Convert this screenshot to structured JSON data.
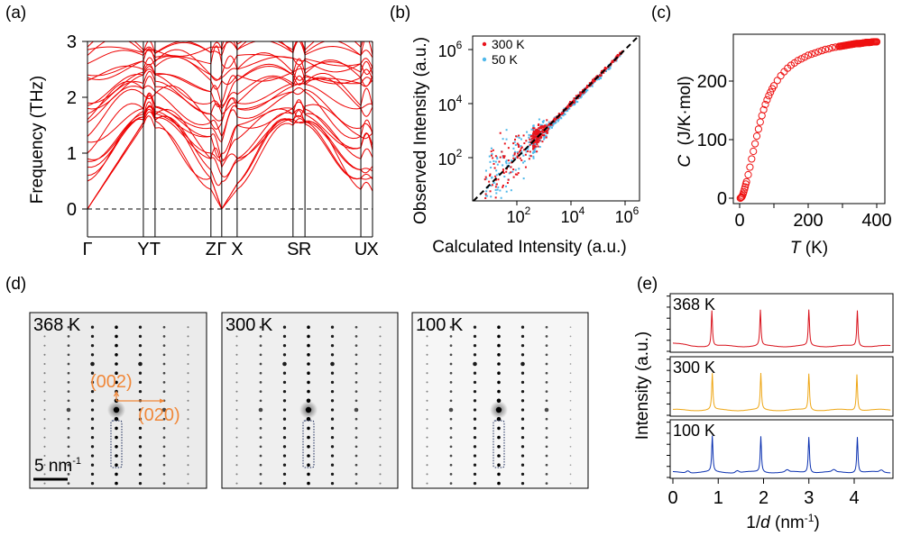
{
  "panel_labels": {
    "a": "(a)",
    "b": "(b)",
    "c": "(c)",
    "d": "(d)",
    "e": "(e)"
  },
  "colors": {
    "band": "#ee0000",
    "red": "#e8141c",
    "blue": "#4fb8ea",
    "heat": "#ee1111",
    "orange": "#f0883a",
    "trace_368": "#d8101a",
    "trace_300": "#eea614",
    "trace_100": "#0a30b0"
  },
  "chart_data": [
    {
      "id": "a",
      "type": "line",
      "title": "",
      "ylabel": "Frequency (THz)",
      "xlabel": "",
      "ylim": [
        -0.5,
        3
      ],
      "yticks": [
        0,
        1,
        2,
        3
      ],
      "ytick_labels": [
        "0",
        "1",
        "2",
        "3"
      ],
      "kpoints": [
        {
          "label": "Γ",
          "pos": 0.0
        },
        {
          "label": "Y",
          "pos": 0.196
        },
        {
          "label": "T",
          "pos": 0.237
        },
        {
          "label": "Z",
          "pos": 0.433
        },
        {
          "label": "Γ",
          "pos": 0.471
        },
        {
          "label": "X",
          "pos": 0.525
        },
        {
          "label": "S",
          "pos": 0.721
        },
        {
          "label": "R",
          "pos": 0.763
        },
        {
          "label": "U",
          "pos": 0.959
        },
        {
          "label": "X",
          "pos": 1.0
        }
      ],
      "kpoint_labels_text": [
        "Γ",
        "YT",
        "ZΓX",
        "SR",
        "UX"
      ],
      "zero_line": "dashed",
      "series_description": "phonon dispersion branches (red), acoustic modes going to 0 at Γ",
      "gamma_start_freqs": [
        0,
        0,
        0,
        0.5,
        0.6,
        0.75,
        0.85,
        0.9,
        1.0,
        1.2,
        1.3,
        1.55,
        1.6,
        1.7,
        1.8,
        1.85,
        1.9,
        2.3,
        2.35,
        2.4,
        2.6,
        2.75,
        2.85,
        2.9
      ],
      "y_tm_freqs": [
        1.5,
        1.55,
        1.6,
        1.65,
        1.7,
        1.75,
        1.8,
        2.05,
        2.15,
        2.25,
        2.4,
        2.45,
        2.5,
        2.65,
        2.75,
        2.8,
        2.85
      ],
      "z_freqs": [
        0.35,
        0.55,
        0.7,
        0.9,
        1.0,
        1.3,
        1.45,
        1.55,
        1.7,
        1.9,
        2.1,
        2.3,
        2.4,
        2.6,
        2.8,
        2.9
      ],
      "x_freqs": [
        0.35,
        0.45,
        0.85,
        0.9,
        1.25,
        1.5,
        1.65,
        1.8,
        1.9,
        2.05,
        2.3,
        2.4,
        2.5,
        2.75,
        2.85,
        2.95
      ],
      "sr_freqs": [
        1.5,
        1.55,
        1.6,
        1.7,
        1.8,
        2.1,
        2.2,
        2.25,
        2.4,
        2.45,
        2.7,
        2.8,
        2.85
      ],
      "u_freqs": [
        0.35,
        0.55,
        0.7,
        0.9,
        1.1,
        1.3,
        1.45,
        1.8,
        1.85,
        2.25,
        2.35,
        2.45,
        2.6,
        2.75,
        2.9
      ]
    },
    {
      "id": "b",
      "type": "scatter",
      "xscale": "log",
      "yscale": "log",
      "xlabel": "Calculated Intensity (a.u.)",
      "ylabel": "Observed Intensity (a.u.)",
      "xlim_log10": [
        0.3,
        6.5
      ],
      "ylim_log10": [
        0.3,
        6.5
      ],
      "xticks": [
        "10^2",
        "10^4",
        "10^6"
      ],
      "yticks": [
        "10^2",
        "10^4",
        "10^6"
      ],
      "tick_base": "10",
      "tick_exponents": [
        "2",
        "4",
        "6"
      ],
      "reference_line": "y = x (dashed black)",
      "legend": {
        "position": "top-left",
        "entries": [
          "300 K",
          "50 K"
        ]
      },
      "series": [
        {
          "name": "300 K",
          "color": "#e8141c",
          "trend": "log(y)=log(x), large scatter below 10^3, tight above 10^3.5"
        },
        {
          "name": "50 K",
          "color": "#4fb8ea",
          "trend": "log(y)=log(x), large scatter below 10^3, tight above 10^3.5"
        }
      ]
    },
    {
      "id": "c",
      "type": "scatter",
      "xlabel_italic": "T",
      "xlabel_unit": " (K)",
      "ylabel_italic": "C",
      "ylabel_unit": "  (J/K·mol)",
      "xlim": [
        -5,
        415
      ],
      "ylim": [
        -15,
        275
      ],
      "xticks": [
        0,
        200,
        400
      ],
      "yticks": [
        0,
        100,
        200
      ],
      "marker": "open circle",
      "x": [
        2,
        4,
        6,
        8,
        10,
        12,
        14,
        16,
        18,
        20,
        25,
        30,
        35,
        40,
        45,
        50,
        55,
        60,
        65,
        70,
        75,
        80,
        85,
        90,
        95,
        100,
        110,
        120,
        130,
        140,
        150,
        160,
        170,
        180,
        190,
        200,
        210,
        220,
        230,
        240,
        250,
        260,
        270,
        280,
        290,
        300,
        310,
        320,
        330,
        340,
        350,
        360,
        370,
        380,
        390,
        400
      ],
      "y": [
        0,
        1,
        2,
        4,
        7,
        11,
        15,
        19,
        24,
        28,
        40,
        53,
        67,
        80,
        93,
        106,
        118,
        130,
        141,
        151,
        160,
        168,
        175,
        181,
        187,
        192,
        201,
        209,
        216,
        222,
        227,
        231,
        235,
        238,
        241,
        244,
        246,
        248,
        250,
        252,
        254,
        255,
        257,
        258,
        259,
        260,
        261,
        262,
        263,
        264,
        264,
        265,
        266,
        266,
        267,
        267
      ]
    },
    {
      "id": "e",
      "type": "line",
      "xlabel_prefix": "1/",
      "xlabel_italic": "d",
      "xlabel_unit": " (nm",
      "xlabel_sup": "-1",
      "xlabel_close": ")",
      "ylabel": "Intensity (a.u.)",
      "xlim": [
        -0.05,
        4.85
      ],
      "xticks": [
        0,
        1,
        2,
        3,
        4
      ],
      "series": [
        {
          "name": "368 K",
          "color": "#d8101a",
          "peaks": [
            0.86,
            1.93,
            3.0,
            4.07
          ],
          "baseline": 0.05
        },
        {
          "name": "300 K",
          "color": "#eea614",
          "peaks": [
            0.87,
            1.94,
            3.0,
            4.06
          ],
          "baseline": 0.05
        },
        {
          "name": "100 K",
          "color": "#0a30b0",
          "peaks": [
            0.87,
            1.94,
            3.0,
            4.07
          ],
          "baseline": 0.05,
          "minor_peaks": [
            0.33,
            1.42,
            2.52,
            3.55,
            4.6
          ]
        }
      ]
    }
  ],
  "diffraction": {
    "images": [
      {
        "label": "368 K",
        "annotations": {
          "vertical": "(002)",
          "horizontal": "(020)"
        },
        "scale_bar": "5 nm",
        "scale_bar_sup": "-1"
      },
      {
        "label": "300 K"
      },
      {
        "label": "100 K"
      }
    ]
  }
}
